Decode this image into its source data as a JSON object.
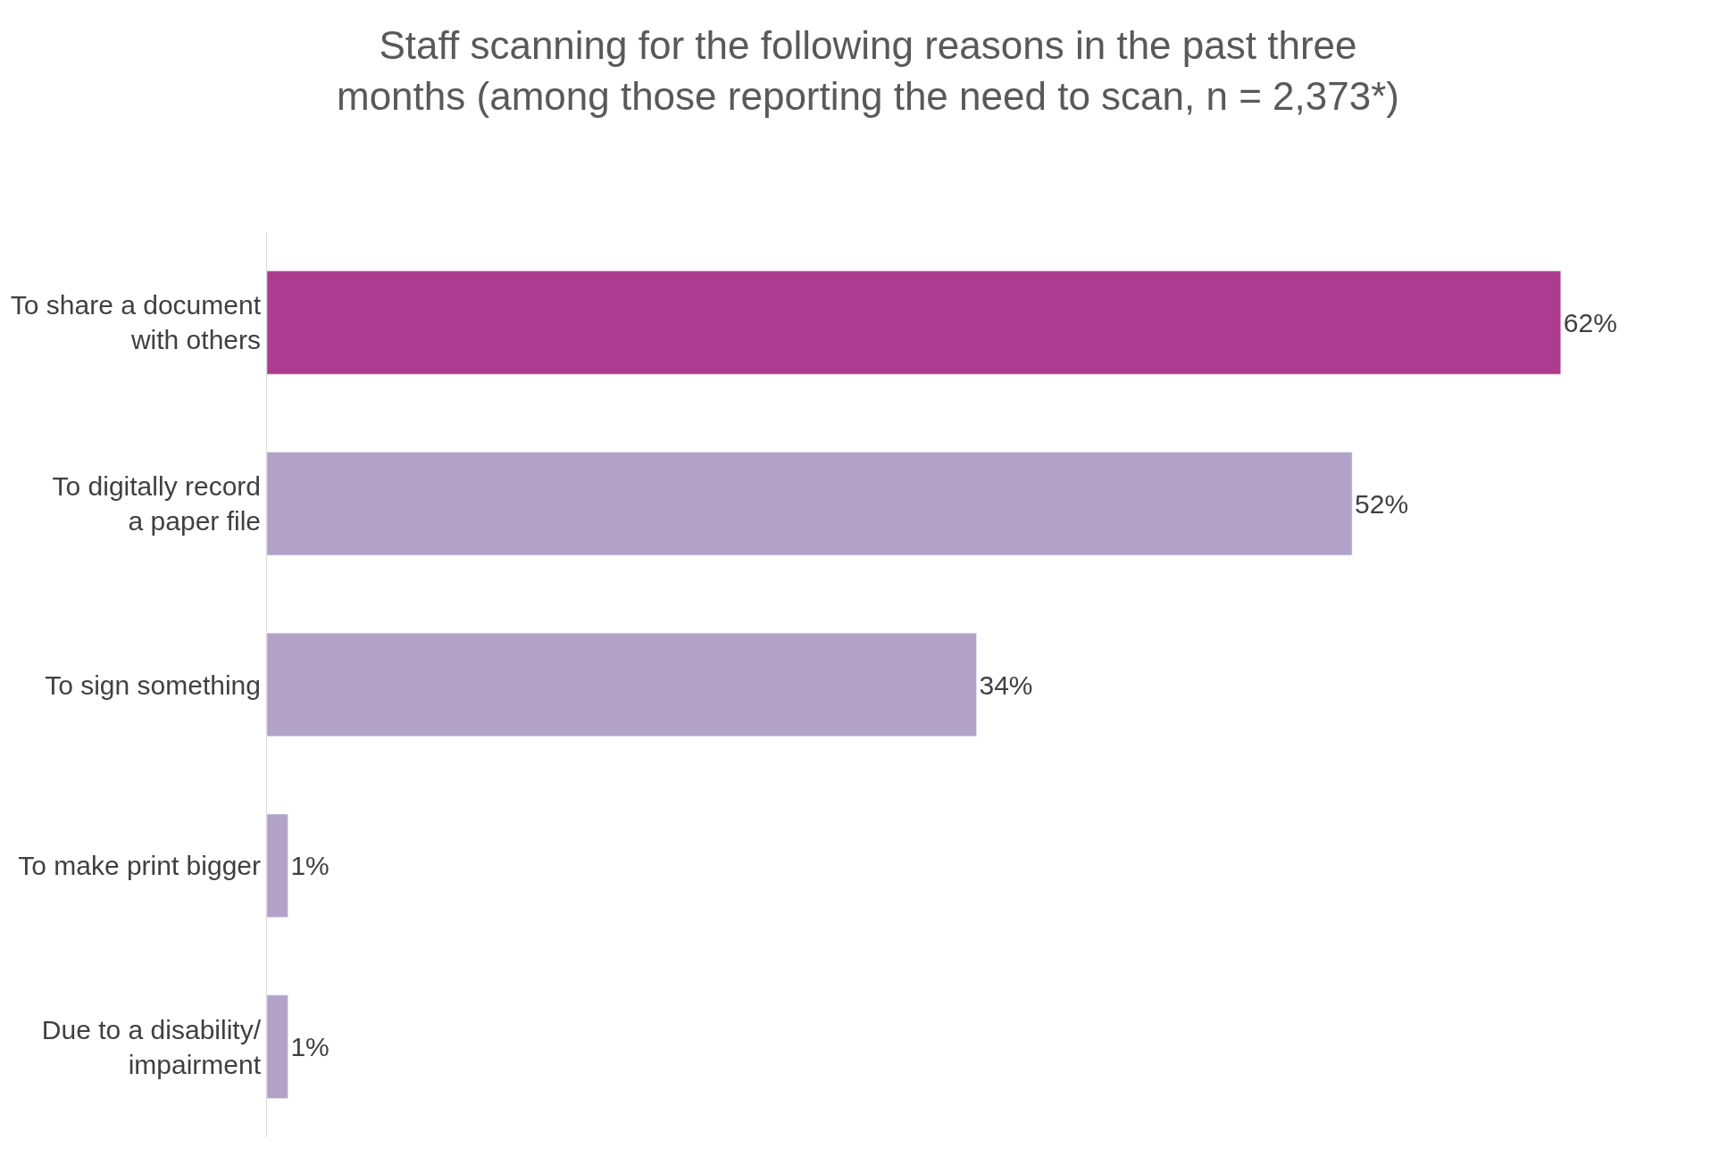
{
  "chart_data": {
    "type": "bar",
    "orientation": "horizontal",
    "title": "Staff scanning for the following reasons in the past three months (among those reporting the need to scan, n = 2,373*)",
    "categories": [
      "To share a document with others",
      "To digitally record a paper file",
      "To sign something",
      "To make print bigger",
      "Due to a disability/ impairment"
    ],
    "values": [
      62,
      52,
      34,
      1,
      1
    ],
    "colors": [
      "#ad3b8f",
      "#b3a2c8",
      "#b3a2c8",
      "#b3a2c8",
      "#b3a2c8"
    ],
    "value_labels": [
      "62%",
      "52%",
      "34%",
      "1%",
      "1%"
    ],
    "legend": false
  }
}
